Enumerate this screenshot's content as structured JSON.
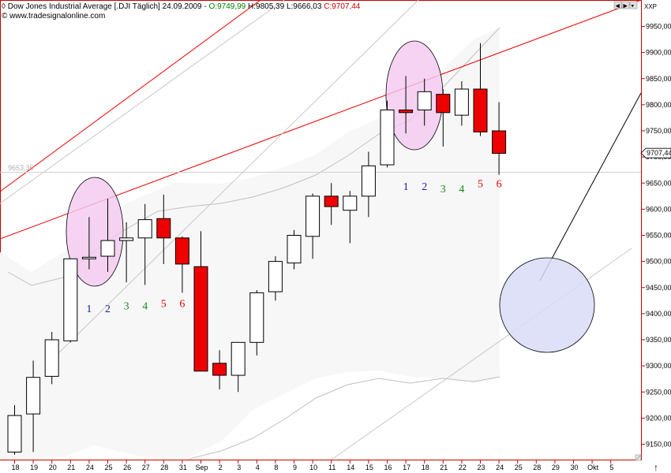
{
  "header": {
    "title_prefix": "Dow Jones Industrial Average [.DJI  Täglich] 24.09.2009 - ",
    "open": "O:9749,99",
    "hlc": " H:9805,39 L:9666,03 ",
    "close": "C:9707,44",
    "website": "www.tradesignalonline.com",
    "symbol_tag": "XXP"
  },
  "chart_data": {
    "type": "candlestick",
    "title": "Dow Jones Industrial Average [.DJI  Täglich] 24.09.2009",
    "ylim": [
      9130,
      9980
    ],
    "y_ticks": [
      9150,
      9200,
      9250,
      9300,
      9350,
      9400,
      9450,
      9500,
      9550,
      9600,
      9650,
      9700,
      9750,
      9800,
      9850,
      9900,
      9950
    ],
    "y_tick_labels": [
      "9150,00",
      "9200,00",
      "9250,00",
      "9300,00",
      "9350,00",
      "9400,00",
      "9450,00",
      "9500,00",
      "9550,00",
      "9600,00",
      "9650,00",
      "9700,00",
      "9750,00",
      "9800,00",
      "9850,00",
      "9900,00",
      "9950,00"
    ],
    "x_labels": [
      "18",
      "19",
      "20",
      "21",
      "24",
      "25",
      "26",
      "27",
      "28",
      "31",
      "Sep",
      "2",
      "3",
      "4",
      "8",
      "9",
      "10",
      "11",
      "14",
      "15",
      "16",
      "17",
      "18",
      "21",
      "22",
      "23",
      "24",
      "25",
      "28",
      "29",
      "30",
      "Okt",
      "5"
    ],
    "last_price_label": "9707,44",
    "ref_level_label": "9653,35",
    "ref_level_value": 9653.35,
    "candles": [
      {
        "date": "18",
        "open": 9135,
        "high": 9225,
        "low": 9130,
        "close": 9205
      },
      {
        "date": "19",
        "open": 9208,
        "high": 9310,
        "low": 9135,
        "close": 9278
      },
      {
        "date": "20",
        "open": 9280,
        "high": 9365,
        "low": 9265,
        "close": 9350
      },
      {
        "date": "21",
        "open": 9348,
        "high": 9505,
        "low": 9345,
        "close": 9505
      },
      {
        "date": "24",
        "open": 9507,
        "high": 9585,
        "low": 9485,
        "close": 9508
      },
      {
        "date": "25",
        "open": 9510,
        "high": 9620,
        "low": 9480,
        "close": 9540
      },
      {
        "date": "26",
        "open": 9540,
        "high": 9575,
        "low": 9460,
        "close": 9545
      },
      {
        "date": "27",
        "open": 9545,
        "high": 9610,
        "low": 9455,
        "close": 9580
      },
      {
        "date": "28",
        "open": 9582,
        "high": 9628,
        "low": 9495,
        "close": 9545
      },
      {
        "date": "31",
        "open": 9545,
        "high": 9548,
        "low": 9440,
        "close": 9495
      },
      {
        "date": "Sep",
        "open": 9490,
        "high": 9558,
        "low": 9290,
        "close": 9290
      },
      {
        "date": "2",
        "open": 9305,
        "high": 9330,
        "low": 9255,
        "close": 9282
      },
      {
        "date": "3",
        "open": 9282,
        "high": 9345,
        "low": 9250,
        "close": 9345
      },
      {
        "date": "4",
        "open": 9345,
        "high": 9445,
        "low": 9320,
        "close": 9440
      },
      {
        "date": "8",
        "open": 9442,
        "high": 9510,
        "low": 9425,
        "close": 9500
      },
      {
        "date": "9",
        "open": 9497,
        "high": 9560,
        "low": 9485,
        "close": 9550
      },
      {
        "date": "10",
        "open": 9548,
        "high": 9630,
        "low": 9505,
        "close": 9625
      },
      {
        "date": "11",
        "open": 9625,
        "high": 9650,
        "low": 9570,
        "close": 9605
      },
      {
        "date": "14",
        "open": 9598,
        "high": 9635,
        "low": 9535,
        "close": 9625
      },
      {
        "date": "15",
        "open": 9625,
        "high": 9710,
        "low": 9585,
        "close": 9683
      },
      {
        "date": "16",
        "open": 9685,
        "high": 9808,
        "low": 9680,
        "close": 9790
      },
      {
        "date": "17",
        "open": 9790,
        "high": 9855,
        "low": 9745,
        "close": 9785
      },
      {
        "date": "18",
        "open": 9790,
        "high": 9850,
        "low": 9760,
        "close": 9825
      },
      {
        "date": "21",
        "open": 9820,
        "high": 9830,
        "low": 9720,
        "close": 9785
      },
      {
        "date": "22",
        "open": 9780,
        "high": 9845,
        "low": 9760,
        "close": 9830
      },
      {
        "date": "23",
        "open": 9830,
        "high": 9918,
        "low": 9740,
        "close": 9748
      },
      {
        "date": "24",
        "open": 9750,
        "high": 9805,
        "low": 9666,
        "close": 9707
      }
    ],
    "annotations": {
      "counts_left": [
        {
          "label": "1",
          "slot": 4,
          "value": 9403,
          "color": "#1a1aa8"
        },
        {
          "label": "2",
          "slot": 5,
          "value": 9403,
          "color": "#1a1aa8"
        },
        {
          "label": "3",
          "slot": 6,
          "value": 9408,
          "color": "#1a8a1a"
        },
        {
          "label": "4",
          "slot": 7,
          "value": 9408,
          "color": "#1a8a1a"
        },
        {
          "label": "5",
          "slot": 8,
          "value": 9413,
          "color": "#e00000"
        },
        {
          "label": "6",
          "slot": 9,
          "value": 9413,
          "color": "#e00000"
        }
      ],
      "counts_right": [
        {
          "label": "1",
          "slot": 21,
          "value": 9637,
          "color": "#1a1aa8"
        },
        {
          "label": "2",
          "slot": 22,
          "value": 9637,
          "color": "#1a1aa8"
        },
        {
          "label": "3",
          "slot": 23,
          "value": 9632,
          "color": "#1a8a1a"
        },
        {
          "label": "4",
          "slot": 24,
          "value": 9632,
          "color": "#1a8a1a"
        },
        {
          "label": "5",
          "slot": 25,
          "value": 9642,
          "color": "#e00000"
        },
        {
          "label": "6",
          "slot": 26,
          "value": 9642,
          "color": "#e00000"
        }
      ]
    },
    "colors": {
      "bull_fill": "#ffffff",
      "bear_fill": "#ee0000",
      "candle_edge": "#000000",
      "channel": "#ee0000",
      "highlight_pink": "#f4c8f0",
      "highlight_blue": "#d9dcf8",
      "band": "#c0c0c0",
      "band_fill": "#f7f7f7",
      "axis_red": "#cc0000"
    },
    "grid": false
  }
}
